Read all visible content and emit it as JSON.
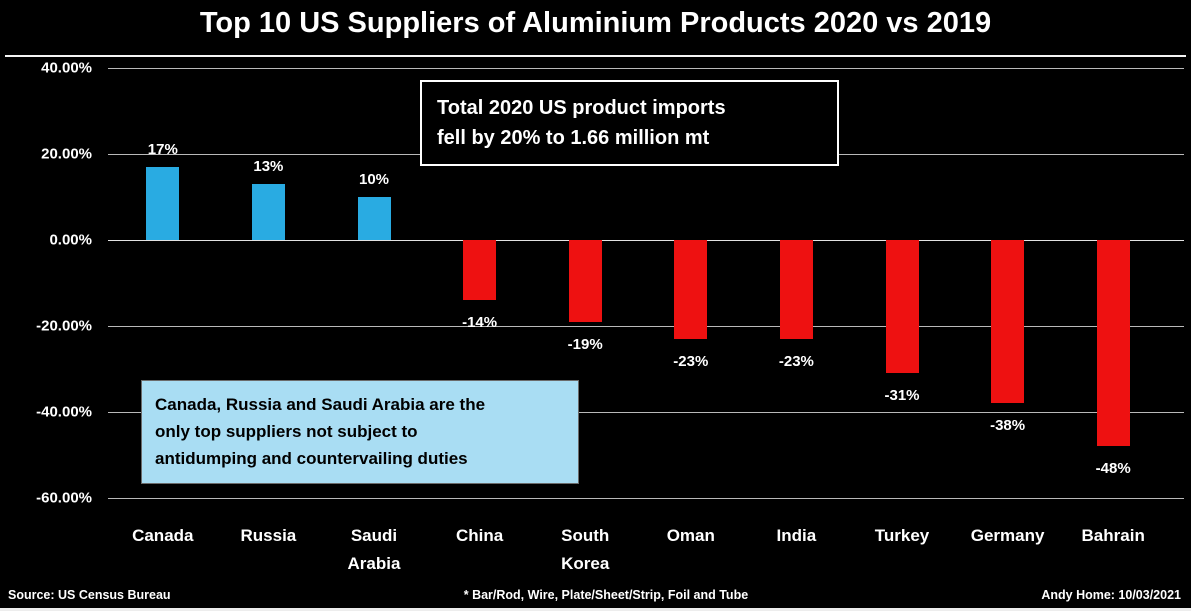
{
  "title": "Top 10 US Suppliers of Aluminium Products 2020 vs 2019",
  "chart_data": {
    "type": "bar",
    "title": "Top 10 US Suppliers of Aluminium Products 2020 vs 2019",
    "categories": [
      "Canada",
      "Russia",
      "Saudi Arabia",
      "China",
      "South Korea",
      "Oman",
      "India",
      "Turkey",
      "Germany",
      "Bahrain"
    ],
    "values": [
      17,
      13,
      10,
      -14,
      -19,
      -23,
      -23,
      -31,
      -38,
      -48
    ],
    "value_labels": [
      "17%",
      "13%",
      "10%",
      "-14%",
      "-19%",
      "-23%",
      "-23%",
      "-31%",
      "-38%",
      "-48%"
    ],
    "xlabel": "",
    "ylabel": "",
    "ylim": [
      -60,
      40
    ],
    "yticks": [
      40,
      20,
      0,
      -20,
      -40,
      -60
    ],
    "ytick_labels": [
      "40.00%",
      "20.00%",
      "0.00%",
      "-20.00%",
      "-40.00%",
      "-60.00%"
    ],
    "positive_color": "#29ABE2",
    "negative_color": "#EE1111",
    "grid": true,
    "legend": "none",
    "background": "#000000"
  },
  "annotations": {
    "imports_note": {
      "line1": "Total 2020 US product imports",
      "line2": "fell by 20% to 1.66 million mt"
    },
    "duties_note": {
      "line1": "Canada, Russia and Saudi Arabia are the",
      "line2": "only top suppliers not subject to",
      "line3": "antidumping and countervailing duties"
    }
  },
  "footer": {
    "source": "Source: US Census Bureau",
    "products_note": "* Bar/Rod, Wire, Plate/Sheet/Strip, Foil and Tube",
    "credit": "Andy Home: 10/03/2021"
  }
}
